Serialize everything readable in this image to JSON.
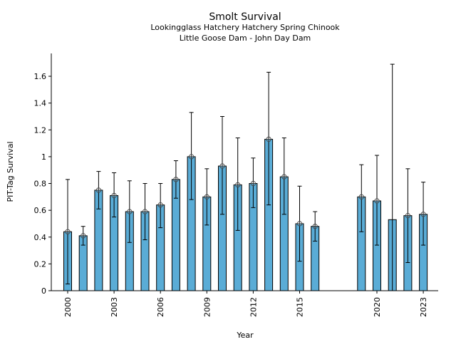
{
  "chart_data": {
    "type": "bar",
    "title": "Smolt Survival",
    "subtitle_lines": [
      "Lookingglass Hatchery Hatchery Spring Chinook",
      "Little Goose Dam - John Day Dam"
    ],
    "xlabel": "Year",
    "ylabel": "PIT-Tag Survival",
    "ylim": [
      0,
      1.77
    ],
    "xlim": [
      1999.0,
      2024.0
    ],
    "yticks": [
      0,
      0.2,
      0.4,
      0.6,
      0.8,
      1,
      1.2,
      1.4,
      1.6
    ],
    "ytick_labels": [
      "0",
      "0.2",
      "0.4",
      "0.6",
      "0.8",
      "1",
      "1.2",
      "1.4",
      "1.6"
    ],
    "xticks": [
      2000,
      2003,
      2006,
      2009,
      2012,
      2015,
      2020,
      2023
    ],
    "xtick_labels": [
      "2000",
      "2003",
      "2006",
      "2009",
      "2012",
      "2015",
      "2020",
      "2023"
    ],
    "grid": false,
    "bar_color": "#5aacd6",
    "edge_color": "#000000",
    "years": [
      2000,
      2001,
      2002,
      2003,
      2004,
      2005,
      2006,
      2007,
      2008,
      2009,
      2010,
      2011,
      2012,
      2013,
      2014,
      2015,
      2016,
      2019,
      2020,
      2021,
      2022,
      2023
    ],
    "values": [
      0.44,
      0.41,
      0.75,
      0.71,
      0.59,
      0.59,
      0.64,
      0.83,
      1.0,
      0.7,
      0.93,
      0.79,
      0.8,
      1.13,
      0.85,
      0.5,
      0.48,
      0.7,
      0.67,
      0.53,
      0.56,
      0.57
    ],
    "err_lower": [
      0.05,
      0.34,
      0.61,
      0.55,
      0.36,
      0.38,
      0.47,
      0.69,
      0.68,
      0.49,
      0.57,
      0.45,
      0.62,
      0.64,
      0.57,
      0.22,
      0.37,
      0.44,
      0.34,
      -0.05,
      0.21,
      0.34
    ],
    "err_upper": [
      0.83,
      0.48,
      0.89,
      0.88,
      0.82,
      0.8,
      0.8,
      0.97,
      1.33,
      0.91,
      1.3,
      1.14,
      0.99,
      1.63,
      1.14,
      0.78,
      0.59,
      0.94,
      1.01,
      1.69,
      0.91,
      0.81
    ],
    "marker": [
      true,
      true,
      true,
      true,
      true,
      true,
      true,
      true,
      true,
      true,
      true,
      true,
      true,
      true,
      true,
      true,
      true,
      true,
      true,
      false,
      true,
      true
    ]
  }
}
